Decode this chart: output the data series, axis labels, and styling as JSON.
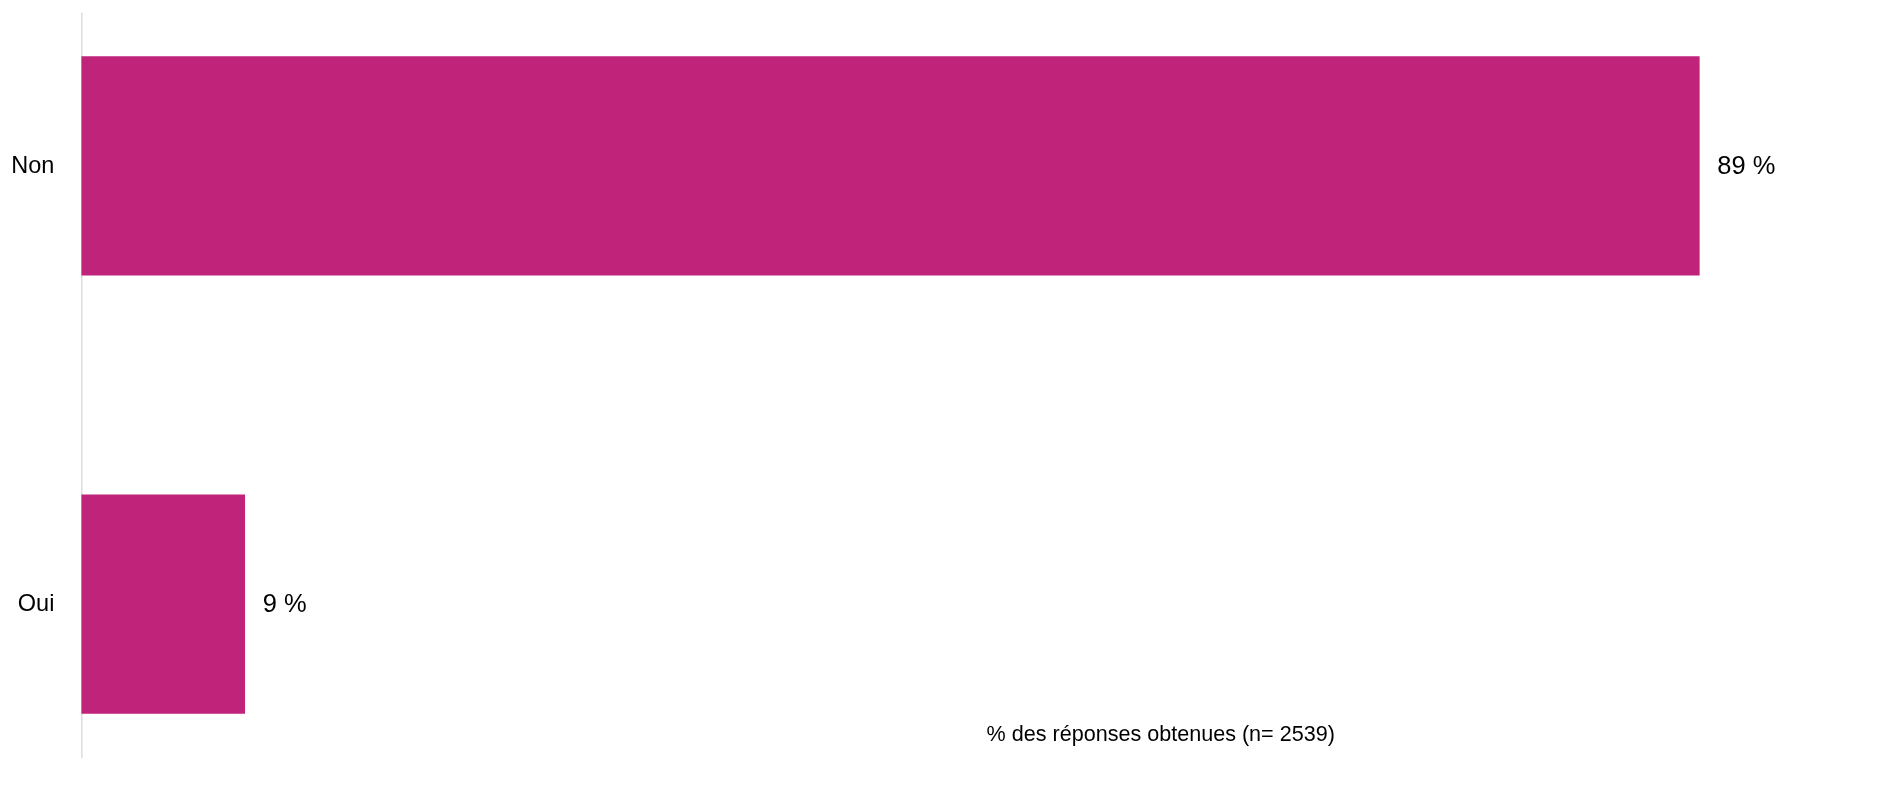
{
  "chart_data": {
    "type": "bar",
    "orientation": "horizontal",
    "xlabel": "% des réponses obtenues (n= 2539)",
    "categories": [
      "Non",
      "Oui"
    ],
    "values": [
      89,
      9
    ],
    "value_labels": [
      "89 %",
      "9 %"
    ],
    "color": "#c0237a",
    "tick_labels": "y",
    "grid": false
  }
}
